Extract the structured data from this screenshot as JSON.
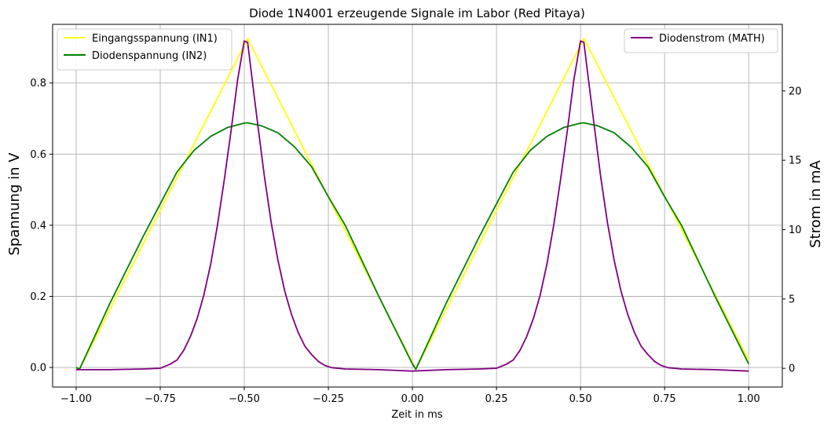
{
  "chart_data": {
    "type": "line",
    "title": "Diode 1N4001 erzeugende Signale im Labor (Red Pitaya)",
    "xlabel": "Zeit in ms",
    "ylabel_left": "Spannung in V",
    "ylabel_right": "Strom in mA",
    "xlim": [
      -1.07,
      1.1
    ],
    "ylim_left": [
      -0.055,
      0.965
    ],
    "ylim_right": [
      -1.35,
      24.8
    ],
    "xticks": [
      -1.0,
      -0.75,
      -0.5,
      -0.25,
      0.0,
      0.25,
      0.5,
      0.75,
      1.0
    ],
    "xtick_labels": [
      "−1.00",
      "−0.75",
      "−0.50",
      "−0.25",
      "0.00",
      "0.25",
      "0.50",
      "0.75",
      "1.00"
    ],
    "yticks_left": [
      0.0,
      0.2,
      0.4,
      0.6,
      0.8
    ],
    "ytick_labels_left": [
      "0.0",
      "0.2",
      "0.4",
      "0.6",
      "0.8"
    ],
    "yticks_right": [
      0,
      5,
      10,
      15,
      20
    ],
    "ytick_labels_right": [
      "0",
      "5",
      "10",
      "15",
      "20"
    ],
    "grid": true,
    "legend_left": {
      "placement": "top-left",
      "entries": [
        "Eingangsspannung (IN1)",
        "Diodenspannung (IN2)"
      ]
    },
    "legend_right": {
      "placement": "top-right",
      "entries": [
        "Diodenstrom (MATH)"
      ]
    },
    "series": [
      {
        "name": "Eingangsspannung (IN1)",
        "axis": "left",
        "color": "#ffff00",
        "x": [
          -1.0,
          -0.99,
          -0.49,
          0.01,
          0.51,
          1.0
        ],
        "y": [
          0.0,
          -0.005,
          0.925,
          -0.005,
          0.925,
          0.02
        ]
      },
      {
        "name": "Diodenspannung (IN2)",
        "axis": "left",
        "color": "#008000",
        "x": [
          -1.0,
          -0.99,
          -0.9,
          -0.8,
          -0.75,
          -0.7,
          -0.65,
          -0.6,
          -0.55,
          -0.5,
          -0.49,
          -0.45,
          -0.4,
          -0.35,
          -0.3,
          -0.25,
          -0.2,
          -0.1,
          0.0,
          0.01,
          0.1,
          0.2,
          0.25,
          0.3,
          0.35,
          0.4,
          0.45,
          0.5,
          0.51,
          0.55,
          0.6,
          0.65,
          0.7,
          0.75,
          0.8,
          0.9,
          1.0
        ],
        "y": [
          0.0,
          -0.005,
          0.18,
          0.37,
          0.46,
          0.55,
          0.61,
          0.65,
          0.675,
          0.687,
          0.688,
          0.68,
          0.66,
          0.62,
          0.565,
          0.48,
          0.4,
          0.2,
          0.01,
          -0.005,
          0.18,
          0.37,
          0.46,
          0.55,
          0.61,
          0.65,
          0.675,
          0.687,
          0.688,
          0.68,
          0.66,
          0.62,
          0.565,
          0.48,
          0.4,
          0.2,
          0.01
        ]
      },
      {
        "name": "Diodenstrom (MATH)",
        "axis": "right",
        "color": "#800080",
        "x": [
          -1.0,
          -0.9,
          -0.8,
          -0.75,
          -0.72,
          -0.7,
          -0.68,
          -0.66,
          -0.64,
          -0.62,
          -0.6,
          -0.58,
          -0.56,
          -0.54,
          -0.52,
          -0.5,
          -0.49,
          -0.48,
          -0.46,
          -0.44,
          -0.42,
          -0.4,
          -0.38,
          -0.36,
          -0.34,
          -0.32,
          -0.3,
          -0.28,
          -0.26,
          -0.24,
          -0.2,
          -0.1,
          0.0,
          0.1,
          0.2,
          0.25,
          0.28,
          0.3,
          0.32,
          0.34,
          0.36,
          0.38,
          0.4,
          0.42,
          0.44,
          0.46,
          0.48,
          0.5,
          0.51,
          0.52,
          0.54,
          0.56,
          0.58,
          0.6,
          0.62,
          0.64,
          0.66,
          0.68,
          0.7,
          0.72,
          0.74,
          0.76,
          0.8,
          0.9,
          1.0
        ],
        "y": [
          -0.1,
          -0.1,
          -0.05,
          0.0,
          0.3,
          0.6,
          1.3,
          2.3,
          3.6,
          5.3,
          7.5,
          10.3,
          13.5,
          17.0,
          20.8,
          23.6,
          23.5,
          21.5,
          17.6,
          13.8,
          10.5,
          7.8,
          5.6,
          3.9,
          2.6,
          1.6,
          1.0,
          0.5,
          0.2,
          0.05,
          -0.05,
          -0.1,
          -0.2,
          -0.1,
          -0.05,
          0.0,
          0.3,
          0.6,
          1.3,
          2.3,
          3.6,
          5.3,
          7.5,
          10.3,
          13.5,
          17.0,
          20.8,
          23.6,
          23.5,
          21.5,
          17.6,
          13.8,
          10.5,
          7.8,
          5.6,
          3.9,
          2.6,
          1.6,
          1.0,
          0.5,
          0.2,
          0.05,
          -0.05,
          -0.1,
          -0.2
        ]
      }
    ]
  }
}
